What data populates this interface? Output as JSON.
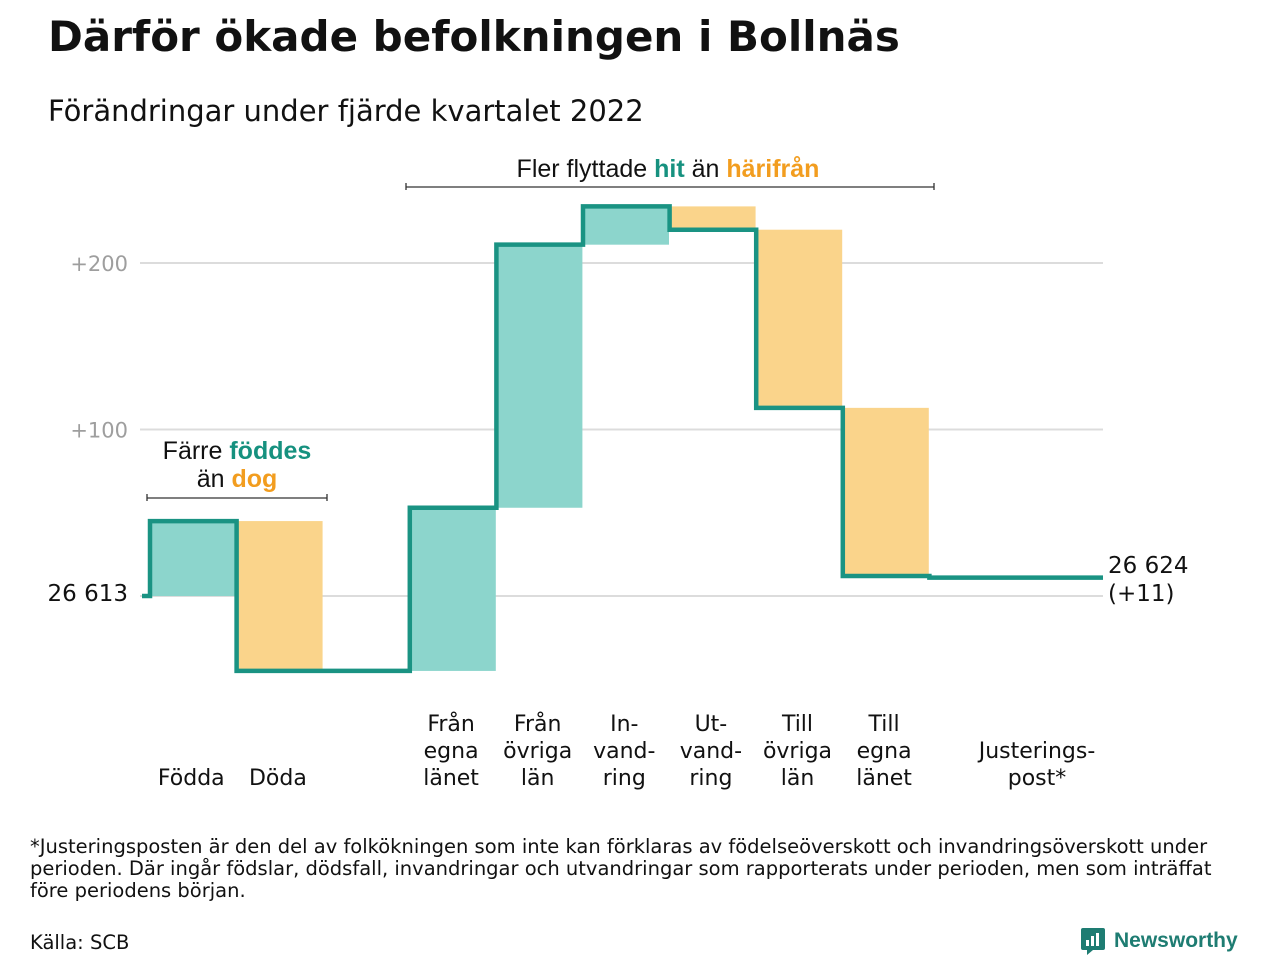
{
  "title": "Därför ökade befolkningen i Bollnäs",
  "subtitle": "Förändringar under fjärde kvartalet 2022",
  "colors": {
    "increase": "#8cd5cc",
    "decrease": "#fad48b",
    "line": "#1a9383",
    "teal_text": "#16917f",
    "orange_text": "#f29d1f",
    "grid": "#dcdcdc",
    "tick": "#9e9e9e"
  },
  "chart_data": {
    "type": "waterfall",
    "title": "Därför ökade befolkningen i Bollnäs",
    "subtitle": "Förändringar under fjärde kvartalet 2022",
    "start": {
      "value": 26613,
      "label": "26 613"
    },
    "end": {
      "value": 26624,
      "label": "26 624",
      "change_label": "(+11)"
    },
    "y_ticks": [
      {
        "value": 100,
        "label": "+100"
      },
      {
        "value": 200,
        "label": "+200"
      }
    ],
    "ylim": [
      -50,
      230
    ],
    "grid": true,
    "steps": [
      {
        "label_lines": [
          "Födda"
        ],
        "change": 45,
        "kind": "increase"
      },
      {
        "label_lines": [
          "Döda"
        ],
        "change": -90,
        "kind": "decrease"
      },
      {
        "label_lines": [],
        "change": 0,
        "kind": "gap"
      },
      {
        "label_lines": [
          "Från",
          "egna",
          "länet"
        ],
        "change": 98,
        "kind": "increase"
      },
      {
        "label_lines": [
          "Från",
          "övriga",
          "län"
        ],
        "change": 158,
        "kind": "increase"
      },
      {
        "label_lines": [
          "In-",
          "vand-",
          "ring"
        ],
        "change": 23,
        "kind": "increase"
      },
      {
        "label_lines": [
          "Ut-",
          "vand-",
          "ring"
        ],
        "change": -14,
        "kind": "decrease"
      },
      {
        "label_lines": [
          "Till",
          "övriga",
          "län"
        ],
        "change": -107,
        "kind": "decrease"
      },
      {
        "label_lines": [
          "Till",
          "egna",
          "länet"
        ],
        "change": -101,
        "kind": "decrease"
      },
      {
        "label_lines": [
          "Justerings-",
          "post*"
        ],
        "change": -1,
        "kind": "adjustment"
      }
    ],
    "annotations": [
      {
        "id": "births",
        "line1": {
          "pre": "Färre ",
          "teal": "föddes"
        },
        "line2": {
          "pre": "än ",
          "orange": "dog"
        }
      },
      {
        "id": "migration",
        "pre": "Fler flyttade ",
        "teal": "hit",
        "mid": " än ",
        "orange": "härifrån"
      }
    ]
  },
  "footnote": "*Justeringsposten är den del av folkökningen som inte kan förklaras av födelseöverskott och invandringsöverskott under perioden. Där ingår födslar, dödsfall, invandringar och utvandringar som rapporterats under perioden, men som inträffat före periodens början.",
  "source": "Källa: SCB",
  "brand": "Newsworthy"
}
